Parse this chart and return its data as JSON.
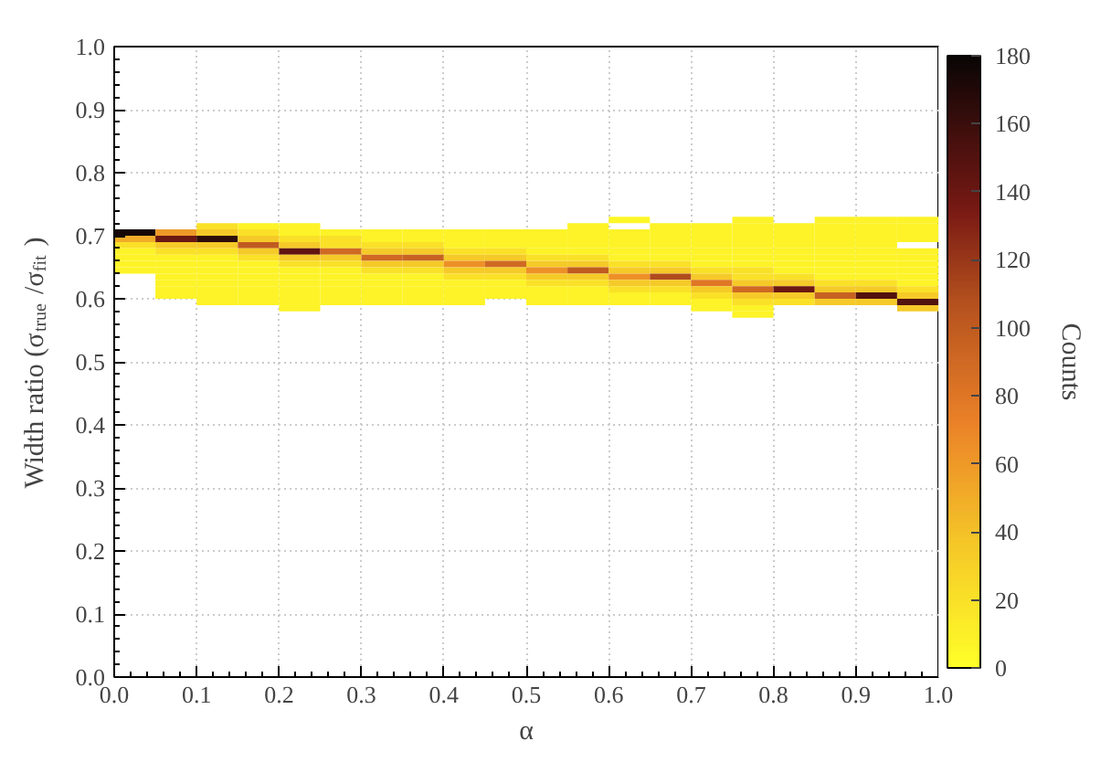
{
  "chart_data": {
    "type": "heatmap",
    "xlabel": "α",
    "ylabel": "Width ratio (σ$_{true}$/σ$_{fit}$)",
    "clabel": "Counts",
    "x": [
      0.025,
      0.075,
      0.125,
      0.175,
      0.225,
      0.275,
      0.325,
      0.375,
      0.425,
      0.475,
      0.525,
      0.575,
      0.625,
      0.675,
      0.725,
      0.775,
      0.825,
      0.875,
      0.925,
      0.975
    ],
    "y": [
      0.725,
      0.715,
      0.705,
      0.695,
      0.685,
      0.675,
      0.665,
      0.655,
      0.645,
      0.635,
      0.625,
      0.615,
      0.605,
      0.595,
      0.585,
      0.575
    ],
    "cells": [
      [
        null,
        null,
        null,
        null,
        null,
        null,
        null,
        null,
        null,
        null,
        null,
        null,
        5,
        null,
        null,
        8,
        null,
        8,
        8,
        8
      ],
      [
        null,
        null,
        20,
        8,
        8,
        null,
        null,
        null,
        null,
        null,
        null,
        8,
        null,
        8,
        8,
        8,
        8,
        8,
        8,
        8
      ],
      [
        175,
        60,
        35,
        20,
        8,
        8,
        8,
        8,
        8,
        8,
        8,
        8,
        8,
        8,
        8,
        8,
        8,
        8,
        8,
        8
      ],
      [
        50,
        140,
        165,
        35,
        20,
        20,
        8,
        8,
        8,
        8,
        8,
        8,
        8,
        8,
        8,
        8,
        8,
        8,
        8,
        8
      ],
      [
        20,
        35,
        35,
        100,
        35,
        20,
        20,
        20,
        8,
        8,
        8,
        8,
        8,
        8,
        8,
        8,
        8,
        8,
        8,
        null
      ],
      [
        8,
        20,
        20,
        35,
        145,
        90,
        35,
        35,
        20,
        20,
        8,
        8,
        8,
        8,
        8,
        8,
        8,
        8,
        8,
        8
      ],
      [
        8,
        8,
        8,
        20,
        35,
        35,
        90,
        95,
        35,
        35,
        20,
        20,
        8,
        8,
        8,
        8,
        8,
        8,
        8,
        8
      ],
      [
        8,
        8,
        8,
        8,
        20,
        20,
        35,
        35,
        65,
        90,
        35,
        35,
        20,
        20,
        8,
        8,
        8,
        8,
        8,
        8
      ],
      [
        8,
        8,
        8,
        8,
        8,
        8,
        20,
        20,
        35,
        35,
        65,
        100,
        35,
        35,
        20,
        20,
        8,
        8,
        8,
        8
      ],
      [
        null,
        8,
        8,
        8,
        8,
        8,
        8,
        8,
        20,
        20,
        35,
        35,
        65,
        110,
        35,
        20,
        20,
        8,
        8,
        8
      ],
      [
        null,
        8,
        8,
        8,
        8,
        8,
        8,
        8,
        8,
        8,
        20,
        20,
        35,
        35,
        80,
        35,
        35,
        20,
        20,
        8
      ],
      [
        null,
        8,
        8,
        8,
        8,
        8,
        8,
        8,
        8,
        8,
        8,
        8,
        20,
        20,
        35,
        90,
        140,
        35,
        35,
        20
      ],
      [
        null,
        8,
        8,
        8,
        8,
        8,
        8,
        8,
        8,
        8,
        8,
        8,
        8,
        8,
        20,
        35,
        35,
        95,
        150,
        35
      ],
      [
        null,
        null,
        8,
        8,
        8,
        8,
        8,
        8,
        8,
        null,
        8,
        8,
        8,
        8,
        8,
        20,
        20,
        35,
        35,
        150
      ],
      [
        null,
        null,
        null,
        null,
        8,
        null,
        null,
        null,
        null,
        null,
        null,
        null,
        null,
        null,
        8,
        8,
        null,
        null,
        null,
        35
      ],
      [
        null,
        null,
        null,
        null,
        null,
        null,
        null,
        null,
        null,
        null,
        null,
        null,
        null,
        null,
        null,
        8,
        null,
        null,
        null,
        null
      ]
    ],
    "xlim": [
      0,
      1
    ],
    "ylim": [
      0,
      1
    ],
    "clim": [
      0,
      180
    ],
    "xticks": [
      {
        "value": 0,
        "label": "0.0"
      },
      {
        "value": 0.1,
        "label": "0.1"
      },
      {
        "value": 0.2,
        "label": "0.2"
      },
      {
        "value": 0.3,
        "label": "0.3"
      },
      {
        "value": 0.4,
        "label": "0.4"
      },
      {
        "value": 0.5,
        "label": "0.5"
      },
      {
        "value": 0.6,
        "label": "0.6"
      },
      {
        "value": 0.7,
        "label": "0.7"
      },
      {
        "value": 0.8,
        "label": "0.8"
      },
      {
        "value": 0.9,
        "label": "0.9"
      },
      {
        "value": 1,
        "label": "1.0"
      }
    ],
    "yticks": [
      {
        "value": 0,
        "label": "0.0"
      },
      {
        "value": 0.1,
        "label": "0.1"
      },
      {
        "value": 0.2,
        "label": "0.2"
      },
      {
        "value": 0.3,
        "label": "0.3"
      },
      {
        "value": 0.4,
        "label": "0.4"
      },
      {
        "value": 0.5,
        "label": "0.5"
      },
      {
        "value": 0.6,
        "label": "0.6"
      },
      {
        "value": 0.7,
        "label": "0.7"
      },
      {
        "value": 0.8,
        "label": "0.8"
      },
      {
        "value": 0.9,
        "label": "0.9"
      },
      {
        "value": 1,
        "label": "1.0"
      }
    ],
    "cticks": [
      0,
      20,
      40,
      60,
      80,
      100,
      120,
      140,
      160,
      180
    ],
    "grid": true
  }
}
